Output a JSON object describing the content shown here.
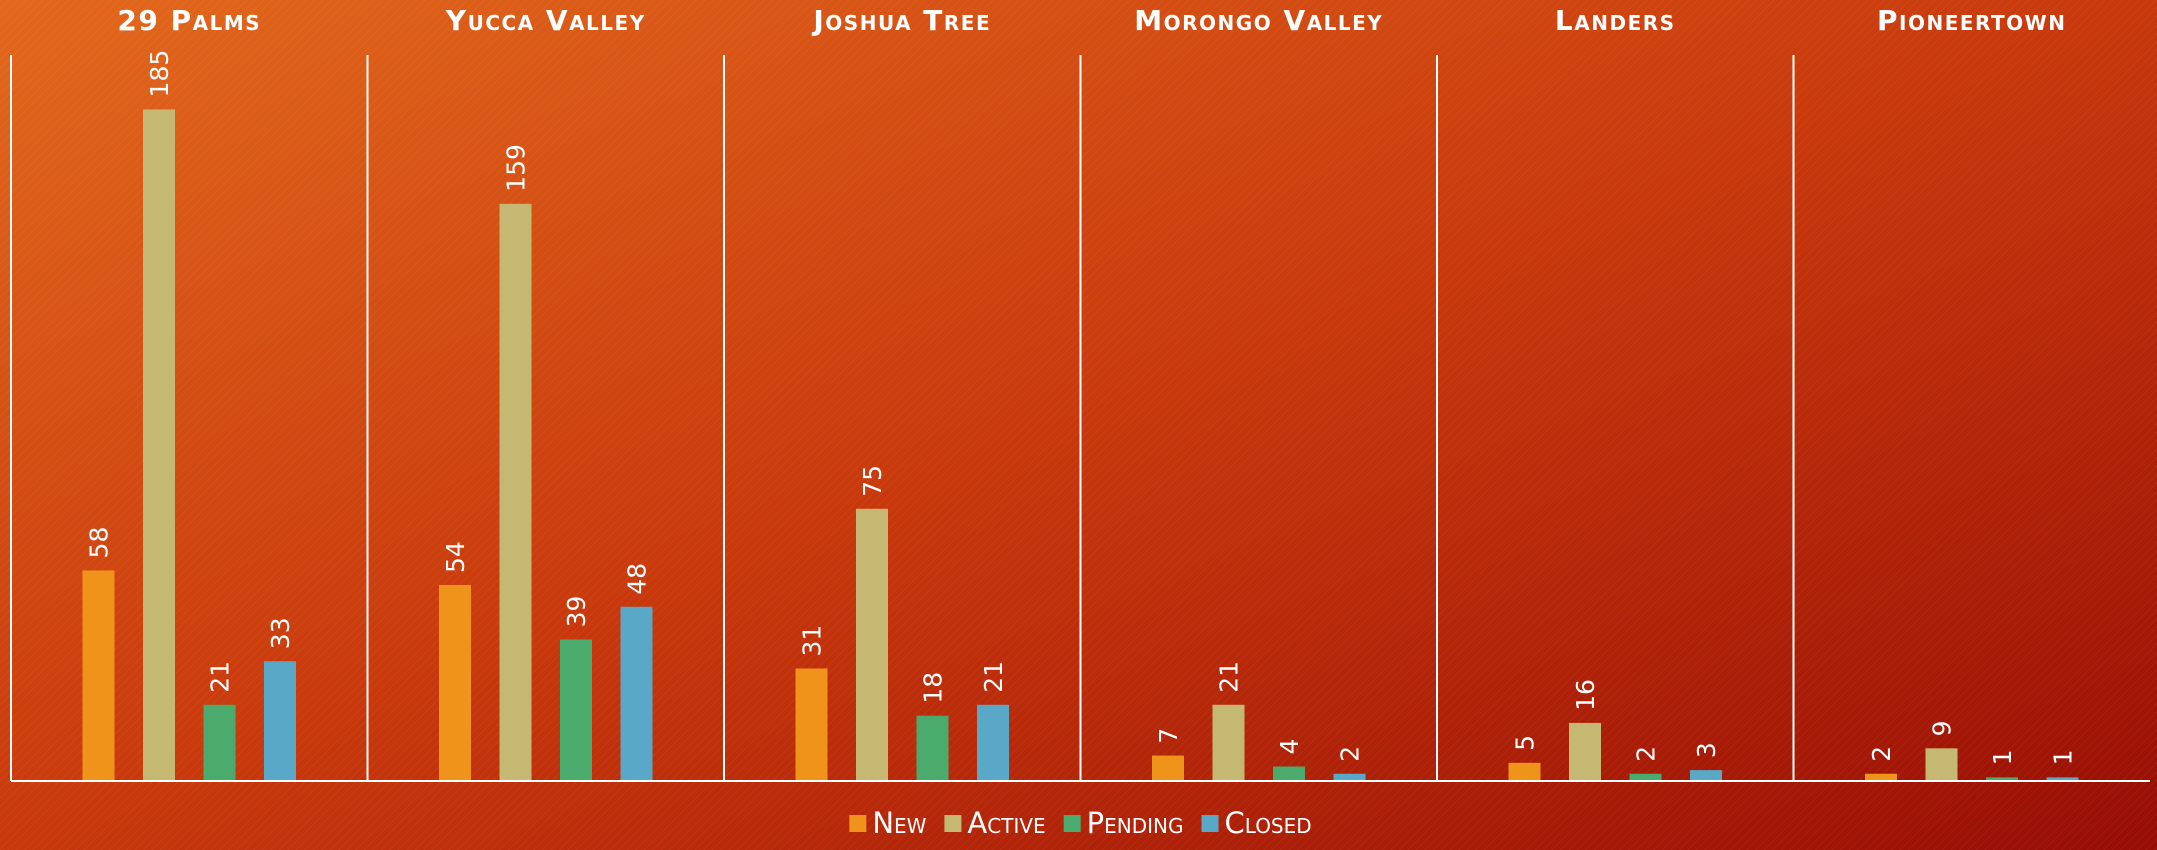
{
  "chart_data": {
    "type": "bar",
    "categories": [
      "29 Palms",
      "Yucca Valley",
      "Joshua Tree",
      "Morongo Valley",
      "Landers",
      "Pioneertown"
    ],
    "series": [
      {
        "name": "New",
        "color": "#f0931a",
        "values": [
          58,
          54,
          31,
          7,
          5,
          2
        ]
      },
      {
        "name": "Active",
        "color": "#c4b873",
        "values": [
          185,
          159,
          75,
          21,
          16,
          9
        ]
      },
      {
        "name": "Pending",
        "color": "#4bab6c",
        "values": [
          21,
          39,
          18,
          4,
          2,
          1
        ]
      },
      {
        "name": "Closed",
        "color": "#5aa8c8",
        "values": [
          33,
          48,
          21,
          2,
          3,
          1
        ]
      }
    ],
    "ylim": [
      0,
      200
    ],
    "legend": "bottom"
  }
}
